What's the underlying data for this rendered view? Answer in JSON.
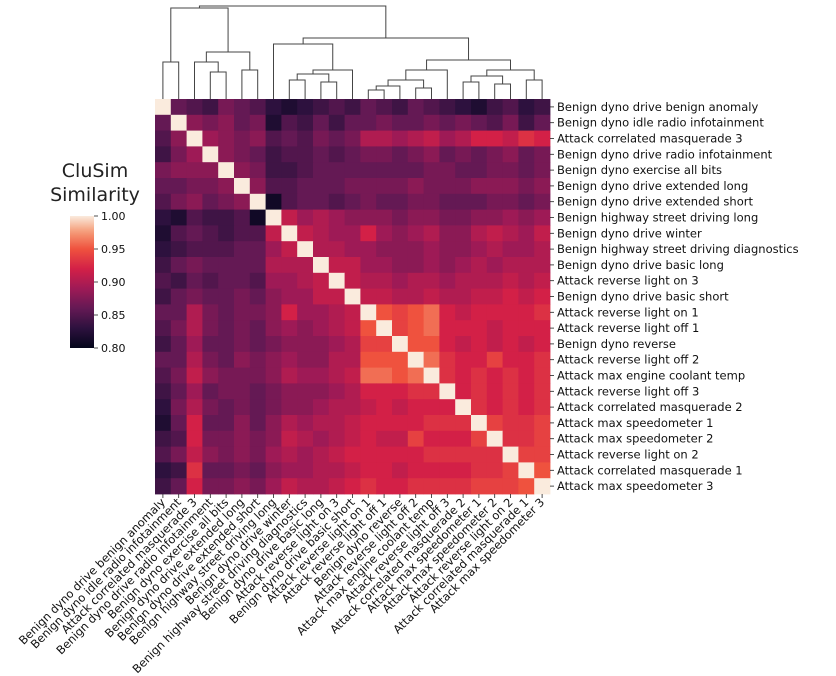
{
  "chart_data": {
    "type": "heatmap",
    "title_lines": [
      "CluSim",
      "Similarity"
    ],
    "colorbar": {
      "min": 0.8,
      "max": 1.0,
      "ticks": [
        "1.00",
        "0.95",
        "0.90",
        "0.85",
        "0.80"
      ],
      "colormap": "rocket"
    },
    "labels": [
      "Benign dyno drive benign anomaly",
      "Benign dyno idle radio infotainment",
      "Attack correlated masquerade 3",
      "Benign dyno drive radio infotainment",
      "Benign dyno exercise all bits",
      "Benign dyno drive extended long",
      "Benign dyno drive extended short",
      "Benign highway street driving long",
      "Benign dyno drive winter",
      "Benign highway street driving diagnostics",
      "Benign dyno drive basic long",
      "Attack reverse light on 3",
      "Benign dyno drive basic short",
      "Attack reverse light on 1",
      "Attack reverse light off 1",
      "Benign dyno reverse",
      "Attack reverse light off 2",
      "Attack max engine coolant temp",
      "Attack reverse light off 3",
      "Attack correlated masquerade 2",
      "Attack max speedometer 1",
      "Attack max speedometer 2",
      "Attack reverse light on 2",
      "Attack correlated masquerade 1",
      "Attack max speedometer 3"
    ],
    "matrix": [
      [
        1.0,
        0.86,
        0.85,
        0.84,
        0.87,
        0.86,
        0.85,
        0.83,
        0.82,
        0.83,
        0.84,
        0.85,
        0.84,
        0.86,
        0.85,
        0.84,
        0.86,
        0.85,
        0.84,
        0.83,
        0.82,
        0.84,
        0.85,
        0.83,
        0.84
      ],
      [
        0.86,
        1.0,
        0.88,
        0.87,
        0.88,
        0.86,
        0.87,
        0.82,
        0.85,
        0.84,
        0.86,
        0.84,
        0.86,
        0.86,
        0.87,
        0.86,
        0.86,
        0.87,
        0.86,
        0.87,
        0.86,
        0.85,
        0.87,
        0.84,
        0.86
      ],
      [
        0.85,
        0.88,
        1.0,
        0.89,
        0.88,
        0.87,
        0.88,
        0.85,
        0.86,
        0.85,
        0.87,
        0.86,
        0.87,
        0.9,
        0.9,
        0.89,
        0.9,
        0.91,
        0.89,
        0.9,
        0.92,
        0.92,
        0.91,
        0.93,
        0.92
      ],
      [
        0.84,
        0.87,
        0.89,
        1.0,
        0.88,
        0.87,
        0.86,
        0.84,
        0.85,
        0.85,
        0.86,
        0.85,
        0.86,
        0.87,
        0.87,
        0.86,
        0.87,
        0.88,
        0.86,
        0.87,
        0.86,
        0.87,
        0.88,
        0.86,
        0.87
      ],
      [
        0.87,
        0.88,
        0.88,
        0.88,
        1.0,
        0.88,
        0.87,
        0.84,
        0.84,
        0.85,
        0.86,
        0.86,
        0.86,
        0.86,
        0.86,
        0.86,
        0.86,
        0.87,
        0.87,
        0.86,
        0.86,
        0.87,
        0.87,
        0.86,
        0.87
      ],
      [
        0.86,
        0.86,
        0.87,
        0.87,
        0.88,
        1.0,
        0.88,
        0.85,
        0.85,
        0.86,
        0.86,
        0.86,
        0.87,
        0.87,
        0.87,
        0.87,
        0.88,
        0.87,
        0.87,
        0.87,
        0.88,
        0.88,
        0.88,
        0.87,
        0.88
      ],
      [
        0.85,
        0.87,
        0.88,
        0.86,
        0.87,
        0.88,
        1.0,
        0.81,
        0.85,
        0.86,
        0.86,
        0.85,
        0.86,
        0.87,
        0.86,
        0.86,
        0.87,
        0.87,
        0.86,
        0.86,
        0.86,
        0.87,
        0.87,
        0.86,
        0.87
      ],
      [
        0.83,
        0.82,
        0.85,
        0.84,
        0.84,
        0.85,
        0.81,
        1.0,
        0.91,
        0.89,
        0.9,
        0.89,
        0.88,
        0.88,
        0.88,
        0.87,
        0.88,
        0.88,
        0.87,
        0.87,
        0.88,
        0.88,
        0.89,
        0.88,
        0.89
      ],
      [
        0.82,
        0.85,
        0.86,
        0.85,
        0.84,
        0.85,
        0.85,
        0.91,
        1.0,
        0.91,
        0.9,
        0.89,
        0.89,
        0.92,
        0.89,
        0.88,
        0.89,
        0.9,
        0.88,
        0.88,
        0.9,
        0.91,
        0.9,
        0.89,
        0.91
      ],
      [
        0.83,
        0.84,
        0.85,
        0.85,
        0.85,
        0.86,
        0.86,
        0.89,
        0.91,
        1.0,
        0.9,
        0.9,
        0.89,
        0.89,
        0.88,
        0.88,
        0.88,
        0.89,
        0.88,
        0.88,
        0.89,
        0.9,
        0.89,
        0.89,
        0.9
      ],
      [
        0.84,
        0.86,
        0.87,
        0.86,
        0.86,
        0.86,
        0.86,
        0.9,
        0.9,
        0.9,
        1.0,
        0.91,
        0.91,
        0.89,
        0.89,
        0.88,
        0.88,
        0.89,
        0.88,
        0.89,
        0.9,
        0.89,
        0.9,
        0.9,
        0.9
      ],
      [
        0.85,
        0.84,
        0.86,
        0.85,
        0.86,
        0.86,
        0.85,
        0.89,
        0.89,
        0.9,
        0.91,
        1.0,
        0.91,
        0.9,
        0.9,
        0.89,
        0.9,
        0.9,
        0.89,
        0.9,
        0.9,
        0.9,
        0.91,
        0.9,
        0.91
      ],
      [
        0.84,
        0.86,
        0.87,
        0.86,
        0.86,
        0.87,
        0.86,
        0.88,
        0.89,
        0.89,
        0.91,
        0.91,
        1.0,
        0.91,
        0.91,
        0.9,
        0.9,
        0.91,
        0.9,
        0.9,
        0.91,
        0.91,
        0.92,
        0.91,
        0.92
      ],
      [
        0.86,
        0.86,
        0.9,
        0.87,
        0.86,
        0.87,
        0.87,
        0.88,
        0.92,
        0.89,
        0.89,
        0.9,
        0.91,
        1.0,
        0.95,
        0.94,
        0.95,
        0.96,
        0.92,
        0.91,
        0.92,
        0.92,
        0.92,
        0.92,
        0.93
      ],
      [
        0.85,
        0.87,
        0.9,
        0.87,
        0.86,
        0.87,
        0.86,
        0.88,
        0.89,
        0.88,
        0.89,
        0.9,
        0.91,
        0.95,
        1.0,
        0.94,
        0.95,
        0.96,
        0.92,
        0.92,
        0.92,
        0.91,
        0.92,
        0.92,
        0.92
      ],
      [
        0.84,
        0.86,
        0.89,
        0.86,
        0.86,
        0.87,
        0.86,
        0.87,
        0.88,
        0.88,
        0.88,
        0.89,
        0.9,
        0.94,
        0.94,
        1.0,
        0.95,
        0.95,
        0.92,
        0.91,
        0.92,
        0.91,
        0.92,
        0.91,
        0.92
      ],
      [
        0.86,
        0.86,
        0.9,
        0.87,
        0.86,
        0.88,
        0.87,
        0.88,
        0.89,
        0.88,
        0.88,
        0.9,
        0.9,
        0.95,
        0.95,
        0.95,
        1.0,
        0.96,
        0.93,
        0.92,
        0.92,
        0.94,
        0.92,
        0.92,
        0.93
      ],
      [
        0.85,
        0.87,
        0.91,
        0.88,
        0.87,
        0.87,
        0.87,
        0.88,
        0.9,
        0.89,
        0.89,
        0.9,
        0.91,
        0.96,
        0.96,
        0.95,
        0.96,
        1.0,
        0.93,
        0.92,
        0.93,
        0.92,
        0.93,
        0.92,
        0.93
      ],
      [
        0.84,
        0.86,
        0.89,
        0.86,
        0.87,
        0.87,
        0.86,
        0.87,
        0.88,
        0.88,
        0.88,
        0.89,
        0.9,
        0.92,
        0.92,
        0.92,
        0.93,
        0.93,
        1.0,
        0.92,
        0.93,
        0.92,
        0.93,
        0.92,
        0.93
      ],
      [
        0.83,
        0.87,
        0.9,
        0.87,
        0.86,
        0.87,
        0.86,
        0.87,
        0.88,
        0.88,
        0.89,
        0.9,
        0.9,
        0.91,
        0.92,
        0.91,
        0.92,
        0.92,
        0.92,
        1.0,
        0.93,
        0.92,
        0.93,
        0.92,
        0.93
      ],
      [
        0.82,
        0.86,
        0.92,
        0.86,
        0.86,
        0.88,
        0.86,
        0.88,
        0.9,
        0.89,
        0.9,
        0.9,
        0.91,
        0.92,
        0.92,
        0.92,
        0.92,
        0.93,
        0.93,
        0.93,
        1.0,
        0.94,
        0.93,
        0.93,
        0.94
      ],
      [
        0.84,
        0.85,
        0.92,
        0.87,
        0.87,
        0.88,
        0.87,
        0.88,
        0.91,
        0.9,
        0.89,
        0.9,
        0.91,
        0.92,
        0.91,
        0.91,
        0.94,
        0.92,
        0.92,
        0.92,
        0.94,
        1.0,
        0.93,
        0.93,
        0.94
      ],
      [
        0.85,
        0.87,
        0.91,
        0.88,
        0.87,
        0.88,
        0.87,
        0.89,
        0.9,
        0.89,
        0.9,
        0.91,
        0.92,
        0.92,
        0.92,
        0.92,
        0.92,
        0.93,
        0.93,
        0.93,
        0.93,
        0.93,
        1.0,
        0.94,
        0.94
      ],
      [
        0.83,
        0.84,
        0.93,
        0.86,
        0.86,
        0.87,
        0.86,
        0.88,
        0.89,
        0.89,
        0.9,
        0.9,
        0.91,
        0.92,
        0.92,
        0.91,
        0.92,
        0.92,
        0.92,
        0.92,
        0.93,
        0.93,
        0.94,
        1.0,
        0.95
      ],
      [
        0.84,
        0.86,
        0.92,
        0.87,
        0.87,
        0.88,
        0.87,
        0.89,
        0.91,
        0.9,
        0.9,
        0.91,
        0.92,
        0.93,
        0.92,
        0.92,
        0.93,
        0.93,
        0.93,
        0.93,
        0.94,
        0.94,
        0.94,
        0.95,
        1.0
      ]
    ]
  }
}
